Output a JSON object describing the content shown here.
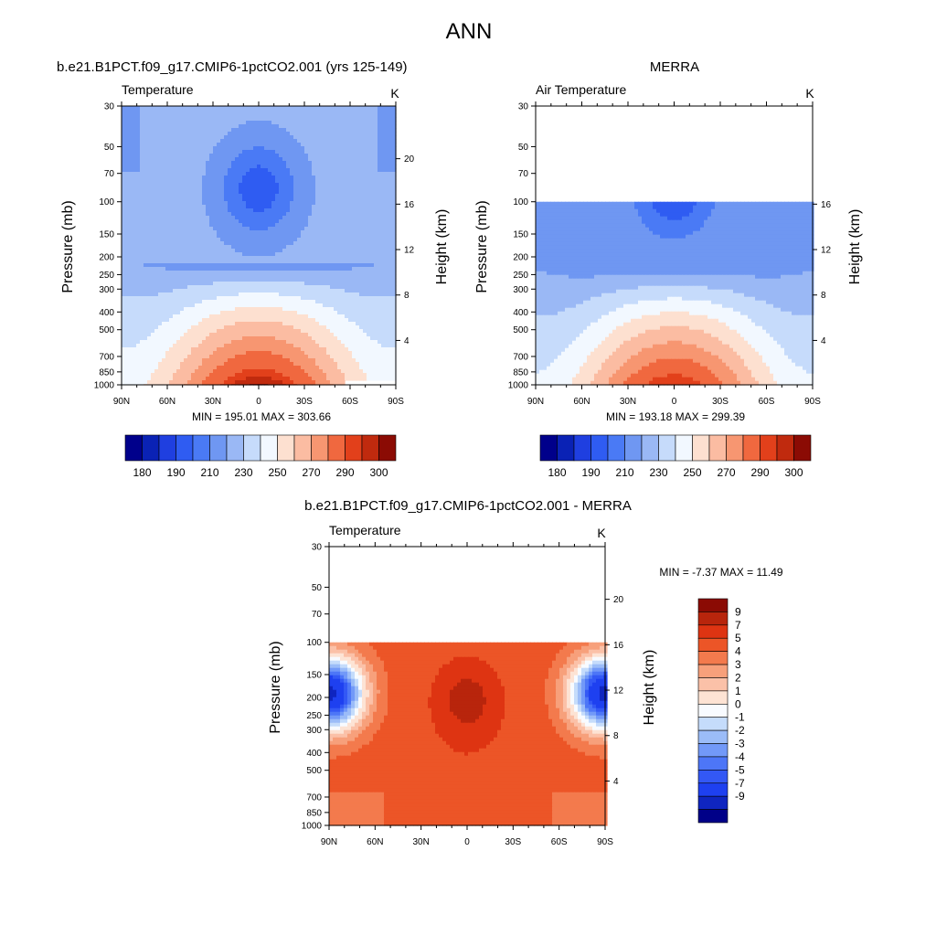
{
  "figure": {
    "title": "ANN",
    "panels": {
      "model": {
        "header": "b.e21.B1PCT.f09_g17.CMIP6-1pctCO2.001 (yrs 125-149)",
        "variable": "Temperature",
        "units": "K",
        "stats": "MIN = 195.01  MAX = 303.66"
      },
      "obs": {
        "header": "MERRA",
        "variable": "Air Temperature",
        "units": "K",
        "stats": "MIN = 193.18  MAX = 299.39"
      },
      "diff": {
        "header": "b.e21.B1PCT.f09_g17.CMIP6-1pctCO2.001 - MERRA",
        "variable": "Temperature",
        "units": "K",
        "stats": "MIN =  -7.37  MAX =  11.49"
      }
    },
    "colors": {
      "temp_palette": [
        "#00008b",
        "#0a22b5",
        "#1f3fe0",
        "#2f5cf2",
        "#4a7af5",
        "#6f97f2",
        "#9ab8f5",
        "#c6dbfb",
        "#f2f8ff",
        "#fde0d0",
        "#fbbca2",
        "#f79671",
        "#f0683f",
        "#e2401b",
        "#c02a0e",
        "#8b0b04"
      ],
      "diff_palette": [
        "#000088",
        "#0f25c0",
        "#1e40f0",
        "#3358f5",
        "#4d76f7",
        "#7299f8",
        "#9bbcf8",
        "#c5dcfb",
        "#f8fbff",
        "#fde3d4",
        "#fbc1a8",
        "#f7a07b",
        "#f37a4d",
        "#ec5527",
        "#de3412",
        "#b8250c",
        "#8b0b04"
      ]
    }
  },
  "chart_data": [
    {
      "type": "heatmap",
      "name": "model",
      "title": "b.e21.B1PCT.f09_g17.CMIP6-1pctCO2.001 (yrs 125-149)",
      "subtitle": "Temperature",
      "units": "K",
      "xlabel": "",
      "ylabel": "Pressure (mb)",
      "ylabel_right": "Height (km)",
      "x_ticks": [
        "90N",
        "60N",
        "30N",
        "0",
        "30S",
        "60S",
        "90S"
      ],
      "y_ticks": [
        30,
        50,
        70,
        100,
        150,
        200,
        250,
        300,
        400,
        500,
        700,
        850,
        1000
      ],
      "height_ticks": [
        20,
        16,
        12,
        8,
        4
      ],
      "ylim": [
        30,
        1000
      ],
      "data_top": 30,
      "min": 195.01,
      "max": 303.66,
      "levels": [
        180,
        185,
        190,
        200,
        210,
        220,
        230,
        240,
        250,
        260,
        270,
        280,
        290,
        295,
        300
      ],
      "colorbar_labels": [
        "180",
        "190",
        "210",
        "230",
        "250",
        "270",
        "290",
        "300"
      ]
    },
    {
      "type": "heatmap",
      "name": "obs",
      "title": "MERRA",
      "subtitle": "Air Temperature",
      "units": "K",
      "xlabel": "",
      "ylabel": "Pressure (mb)",
      "ylabel_right": "Height (km)",
      "x_ticks": [
        "90N",
        "60N",
        "30N",
        "0",
        "30S",
        "60S",
        "90S"
      ],
      "y_ticks": [
        30,
        50,
        70,
        100,
        150,
        200,
        250,
        300,
        400,
        500,
        700,
        850,
        1000
      ],
      "height_ticks": [
        16,
        12,
        8,
        4
      ],
      "ylim": [
        30,
        1000
      ],
      "data_top": 100,
      "min": 193.18,
      "max": 299.39,
      "levels": [
        180,
        185,
        190,
        200,
        210,
        220,
        230,
        240,
        250,
        260,
        270,
        280,
        290,
        295,
        300
      ],
      "colorbar_labels": [
        "180",
        "190",
        "210",
        "230",
        "250",
        "270",
        "290",
        "300"
      ]
    },
    {
      "type": "heatmap",
      "name": "diff",
      "title": "b.e21.B1PCT.f09_g17.CMIP6-1pctCO2.001 - MERRA",
      "subtitle": "Temperature",
      "units": "K",
      "xlabel": "",
      "ylabel": "Pressure (mb)",
      "ylabel_right": "Height (km)",
      "x_ticks": [
        "90N",
        "60N",
        "30N",
        "0",
        "30S",
        "60S",
        "90S"
      ],
      "y_ticks": [
        30,
        50,
        70,
        100,
        150,
        200,
        250,
        300,
        400,
        500,
        700,
        850,
        1000
      ],
      "height_ticks": [
        20,
        16,
        12,
        8,
        4
      ],
      "ylim": [
        30,
        1000
      ],
      "data_top": 100,
      "min": -7.37,
      "max": 11.49,
      "levels": [
        -9,
        -7,
        -5,
        -4,
        -3,
        -2,
        -1,
        0,
        1,
        2,
        3,
        4,
        5,
        7,
        9
      ],
      "colorbar_labels": [
        "9",
        "7",
        "5",
        "4",
        "3",
        "2",
        "1",
        "0",
        "-1",
        "-2",
        "-3",
        "-4",
        "-5",
        "-7",
        "-9"
      ]
    }
  ]
}
